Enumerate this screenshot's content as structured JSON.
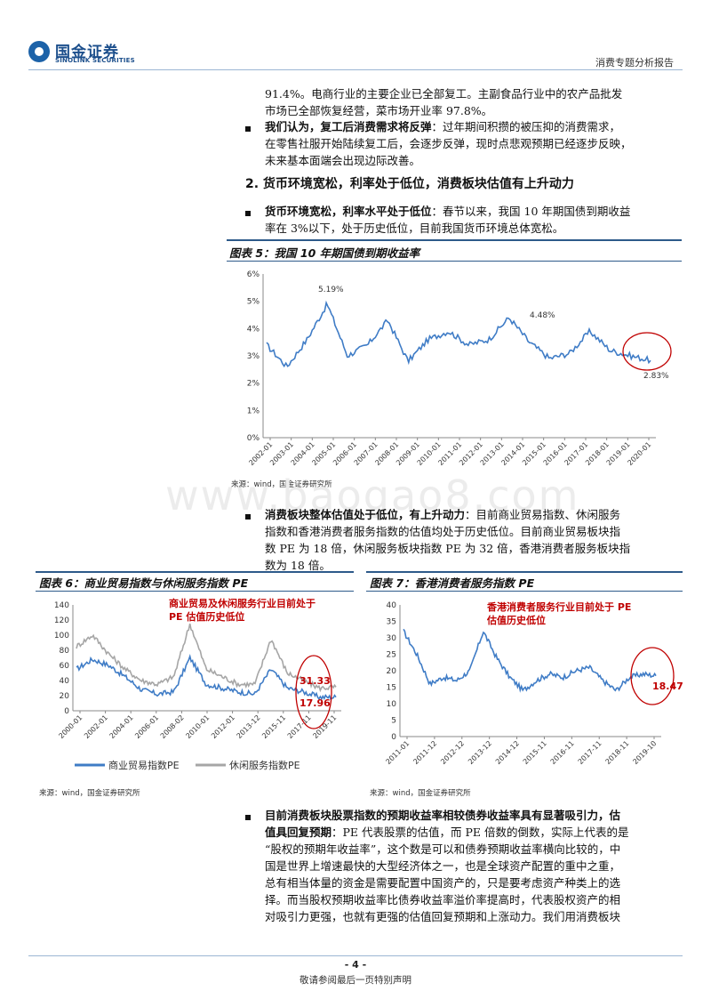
{
  "header": {
    "logo_cn": "国金证券",
    "logo_en": "SINOLINK SECURITIES",
    "report_type": "消费专题分析报告"
  },
  "body": {
    "p1_line1": "91.4%。电商行业的主要企业已全部复工。主副食品行业中的农产品批发",
    "p1_line2": "市场已全部恢复经营，菜市场开业率 97.8%。",
    "b1_bold": "我们认为，复工后消费需求将反弹",
    "b1_line1": "：过年期间积攒的被压抑的消费需求，",
    "b1_line2": "在零售社服开始陆续复工后，会逐步反弹，现时点悲观预期已经逐步反映，",
    "b1_line3": "未来基本面端会出现边际改善。",
    "section2": "2. 货币环境宽松，利率处于低位，消费板块估值有上升动力",
    "b2_bold": "货币环境宽松，利率水平处于低位",
    "b2_line1": "：春节以来，我国 10 年期国债到期收益",
    "b2_line2": "率在 3%以下，处于历史低位，目前我国货币环境总体宽松。",
    "b3_bold": "消费板块整体估值处于低位，有上升动力",
    "b3_line1": "：目前商业贸易指数、休闲服务",
    "b3_line2": "指数和香港消费者服务指数的估值均处于历史低位。目前商业贸易板块指",
    "b3_line3": "数 PE 为 18 倍，休闲服务板块指数 PE 为 32 倍，香港消费者服务板块指",
    "b3_line4": "数为 18 倍。",
    "b4_bold_1": "目前消费板块股票指数的预期收益率相较债券收益率具有显著吸引力，估",
    "b4_bold_2": "值具回复预期",
    "b4_line1": "：PE 代表股票的估值，而 PE 倍数的倒数，实际上代表的是",
    "b4_line2": "“股权的预期年收益率”，这个数是可以和债券预期收益率横向比较的，中",
    "b4_line3": "国是世界上增速最快的大型经济体之一，也是全球资产配置的重中之重，",
    "b4_line4": "总有相当体量的资金是需要配置中国资产的，只是要考虑资产种类上的选",
    "b4_line5": "择。而当股权预期收益率比债券收益率溢价率提高时，代表股权资产的相",
    "b4_line6": "对吸引力更强，也就有更强的估值回复预期和上涨动力。我们用消费板块"
  },
  "watermark": "www.baogao8.com",
  "fig5": {
    "title": "图表 5：我国 10 年期国债到期收益率",
    "source": "来源：wind，国金证券研究所"
  },
  "fig6": {
    "title": "图表 6：商业贸易指数与休闲服务指数 PE",
    "note_line1": "商业贸易及休闲服务行业目前处于",
    "note_line2": "PE 估值历史低位",
    "source": "来源：wind，国金证券研究所"
  },
  "fig7": {
    "title": "图表 7：香港消费者服务指数 PE",
    "note_line1": "香港消费者服务行业目前处于 PE",
    "note_line2": "估值历史低位",
    "source": "来源：wind，国金证券研究所"
  },
  "footer": {
    "page": "- 4 -",
    "notice": "敬请参阅最后一页特别声明"
  },
  "colors": {
    "series_blue": "#3f7cc6",
    "series_gray": "#a6a6a6",
    "highlight_red": "#c00000",
    "brand": "#1c4f8c"
  },
  "chart_data": [
    {
      "type": "line",
      "x_ticks": [
        "2002-01",
        "2003-01",
        "2004-01",
        "2005-01",
        "2006-01",
        "2007-01",
        "2008-01",
        "2009-01",
        "2010-01",
        "2011-01",
        "2012-01",
        "2013-01",
        "2014-01",
        "2015-01",
        "2016-01",
        "2017-01",
        "2018-01",
        "2019-01",
        "2020-01"
      ],
      "ylim": [
        0,
        6
      ],
      "y_ticks": [
        "0%",
        "1%",
        "2%",
        "3%",
        "4%",
        "5%",
        "6%"
      ],
      "series": [
        {
          "values": [
            3.4,
            2.6,
            3.6,
            4.9,
            3.0,
            3.4,
            4.3,
            2.8,
            3.6,
            3.9,
            3.4,
            3.6,
            4.4,
            3.5,
            2.9,
            3.1,
            3.9,
            3.2,
            3.0,
            2.83
          ]
        }
      ],
      "annotations": [
        "5.19%",
        "4.48%",
        "2.83%"
      ]
    },
    {
      "type": "line",
      "x_ticks": [
        "2000-01",
        "2002-01",
        "2004-01",
        "2006-01",
        "2008-02",
        "2010-01",
        "2012-01",
        "2013-12",
        "2015-11",
        "2017-11",
        "2019-11"
      ],
      "ylim": [
        0,
        140
      ],
      "y_ticks": [
        "0",
        "20",
        "40",
        "60",
        "80",
        "100",
        "120",
        "140"
      ],
      "series": [
        {
          "name": "商业贸易指数PE",
          "values": [
            55,
            68,
            60,
            45,
            28,
            22,
            25,
            70,
            35,
            30,
            25,
            22,
            55,
            30,
            25,
            18,
            17.96
          ]
        },
        {
          "name": "休闲服务指数PE",
          "values": [
            85,
            100,
            75,
            55,
            40,
            35,
            45,
            115,
            55,
            45,
            35,
            35,
            95,
            50,
            40,
            30,
            31.33
          ]
        }
      ],
      "annotations": [
        "31.33",
        "17.96"
      ]
    },
    {
      "type": "line",
      "x_ticks": [
        "2011-01",
        "2011-12",
        "2012-12",
        "2013-12",
        "2014-12",
        "2015-11",
        "2016-11",
        "2017-11",
        "2018-11",
        "2019-10"
      ],
      "ylim": [
        0,
        40
      ],
      "y_ticks": [
        "0",
        "5",
        "10",
        "15",
        "20",
        "25",
        "30",
        "35",
        "40"
      ],
      "series": [
        {
          "values": [
            32,
            25,
            16,
            18,
            17,
            20,
            32,
            24,
            18,
            14,
            17,
            19,
            18,
            20,
            21,
            17,
            14,
            18,
            19,
            18.47
          ]
        }
      ],
      "annotations": [
        "18.47"
      ]
    }
  ]
}
